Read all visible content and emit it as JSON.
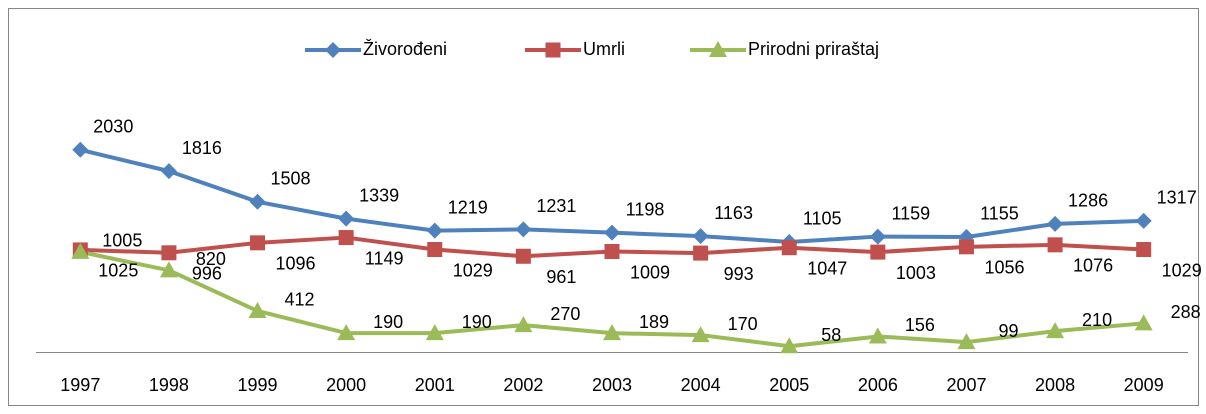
{
  "chart_data": {
    "type": "line",
    "categories": [
      "1997",
      "1998",
      "1999",
      "2000",
      "2001",
      "2002",
      "2003",
      "2004",
      "2005",
      "2006",
      "2007",
      "2008",
      "2009"
    ],
    "series": [
      {
        "name": "Živorođeni",
        "color": "#4f81bd",
        "marker": "diamond",
        "values": [
          2030,
          1816,
          1508,
          1339,
          1219,
          1231,
          1198,
          1163,
          1105,
          1159,
          1155,
          1286,
          1317
        ]
      },
      {
        "name": "Umrli",
        "color": "#c0504d",
        "marker": "square",
        "values": [
          1025,
          996,
          1096,
          1149,
          1029,
          961,
          1009,
          993,
          1047,
          1003,
          1056,
          1076,
          1029
        ]
      },
      {
        "name": "Prirodni priraštaj",
        "color": "#9bbb59",
        "marker": "triangle",
        "values": [
          1005,
          820,
          412,
          190,
          190,
          270,
          189,
          170,
          58,
          156,
          99,
          210,
          288
        ]
      }
    ],
    "ylim": [
      0,
      2500
    ],
    "legend": "top",
    "data_labels": true
  }
}
